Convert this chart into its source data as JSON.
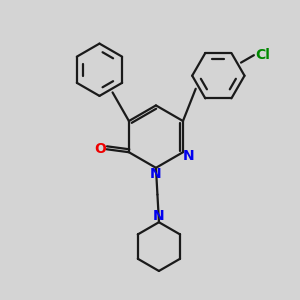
{
  "bg_color": "#d4d4d4",
  "bond_color": "#1a1a1a",
  "N_color": "#0000ee",
  "O_color": "#ee0000",
  "Cl_color": "#008800",
  "line_width": 1.6,
  "figsize": [
    3.0,
    3.0
  ],
  "dpi": 100,
  "xlim": [
    0,
    10
  ],
  "ylim": [
    0,
    10
  ]
}
